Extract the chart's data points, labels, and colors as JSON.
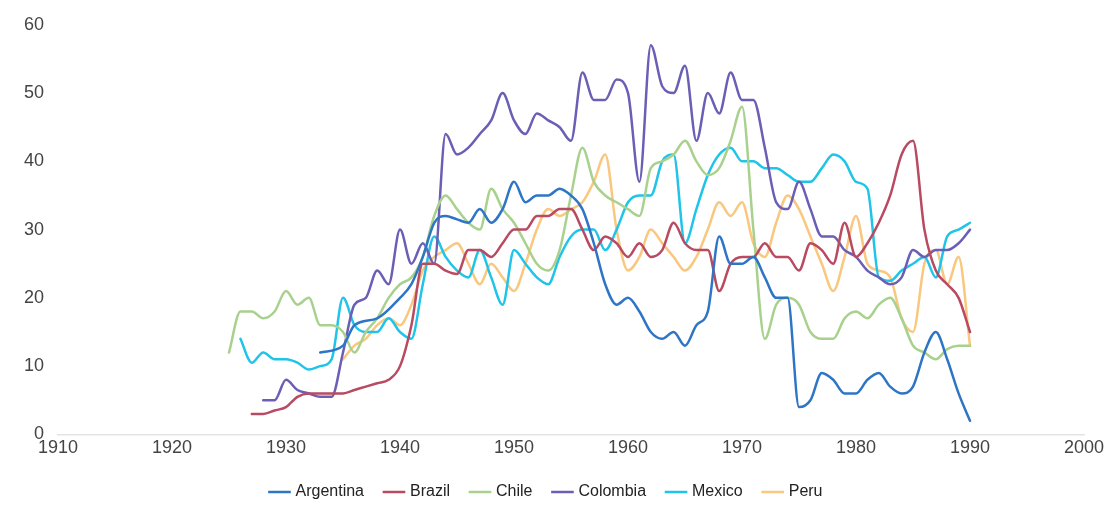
{
  "chart_data": {
    "type": "line",
    "xlim": [
      1910,
      2000
    ],
    "xticks": [
      1910,
      1920,
      1930,
      1940,
      1950,
      1960,
      1970,
      1980,
      1990,
      2000
    ],
    "ylim": [
      0,
      60
    ],
    "yticks": [
      0,
      10,
      20,
      30,
      40,
      50,
      60
    ],
    "grid": false,
    "legend": "bottom",
    "marker": "none",
    "line_style": "solid",
    "series": [
      {
        "name": "Argentina",
        "color": "#2e75c6",
        "x": [
          1933,
          1935,
          1936,
          1938,
          1940,
          1941,
          1942,
          1943,
          1944,
          1945,
          1946,
          1947,
          1948,
          1949,
          1950,
          1951,
          1952,
          1953,
          1954,
          1955,
          1956,
          1957,
          1958,
          1959,
          1960,
          1961,
          1962,
          1963,
          1964,
          1965,
          1966,
          1967,
          1968,
          1969,
          1970,
          1971,
          1972,
          1973,
          1974,
          1975,
          1976,
          1977,
          1978,
          1979,
          1980,
          1981,
          1982,
          1983,
          1984,
          1985,
          1986,
          1987,
          1988,
          1989,
          1990
        ],
        "values": [
          12,
          13,
          16,
          17,
          20,
          22,
          26,
          31,
          32,
          31.5,
          31,
          33,
          31,
          33,
          37,
          34,
          35,
          35,
          36,
          35,
          33,
          28,
          22,
          19,
          20,
          18,
          15,
          14,
          15,
          13,
          16,
          18,
          29,
          25,
          25,
          26,
          23,
          20,
          20,
          4,
          5,
          9,
          8,
          6,
          6,
          8,
          9,
          7,
          6,
          7,
          12,
          15,
          11,
          6,
          2
        ]
      },
      {
        "name": "Brazil",
        "color": "#b84a62",
        "x": [
          1927,
          1928,
          1929,
          1930,
          1931,
          1932,
          1933,
          1934,
          1935,
          1936,
          1937,
          1938,
          1939,
          1940,
          1941,
          1942,
          1943,
          1944,
          1945,
          1946,
          1947,
          1948,
          1949,
          1950,
          1951,
          1952,
          1953,
          1954,
          1955,
          1956,
          1957,
          1958,
          1959,
          1960,
          1961,
          1962,
          1963,
          1964,
          1965,
          1966,
          1967,
          1968,
          1969,
          1970,
          1971,
          1972,
          1973,
          1974,
          1975,
          1976,
          1977,
          1978,
          1979,
          1980,
          1981,
          1982,
          1983,
          1984,
          1985,
          1986,
          1987,
          1988,
          1989,
          1990
        ],
        "values": [
          3,
          3,
          3.5,
          4,
          5.5,
          6,
          6,
          6,
          6,
          6.5,
          7,
          7.5,
          8,
          10,
          16,
          25,
          25,
          24,
          23.5,
          27,
          27,
          26,
          28,
          30,
          30,
          32,
          32,
          33,
          33,
          30,
          27,
          29,
          28,
          26,
          28,
          26,
          27,
          31,
          28,
          27,
          27,
          21,
          25,
          26,
          26,
          28,
          26,
          26,
          24,
          28,
          27,
          25,
          31,
          26,
          28,
          31,
          35,
          41,
          43,
          30,
          24,
          22,
          20,
          15
        ]
      },
      {
        "name": "Chile",
        "color": "#a9d18e",
        "x": [
          1925,
          1926,
          1927,
          1928,
          1929,
          1930,
          1931,
          1932,
          1933,
          1934,
          1935,
          1936,
          1937,
          1938,
          1939,
          1940,
          1941,
          1942,
          1943,
          1944,
          1945,
          1946,
          1947,
          1948,
          1949,
          1950,
          1951,
          1952,
          1953,
          1954,
          1955,
          1956,
          1957,
          1958,
          1959,
          1960,
          1961,
          1962,
          1963,
          1964,
          1965,
          1966,
          1967,
          1968,
          1969,
          1970,
          1971,
          1972,
          1973,
          1974,
          1975,
          1976,
          1977,
          1978,
          1979,
          1980,
          1981,
          1982,
          1983,
          1984,
          1985,
          1986,
          1987,
          1988,
          1989,
          1990
        ],
        "values": [
          12,
          18,
          18,
          17,
          18,
          21,
          19,
          20,
          16,
          16,
          15,
          12,
          15,
          17,
          20,
          22,
          23,
          26,
          32,
          35,
          33,
          31,
          30,
          36,
          33,
          31,
          28,
          25,
          24,
          27,
          35,
          42,
          37,
          35,
          34,
          33,
          32,
          39,
          40,
          41,
          43,
          40,
          38,
          39,
          43,
          48,
          30,
          14,
          19,
          20,
          19,
          15,
          14,
          14,
          17,
          18,
          17,
          19,
          20,
          17,
          13,
          12,
          11,
          12.5,
          13,
          13
        ]
      },
      {
        "name": "Colombia",
        "color": "#6a5fb5",
        "x": [
          1928,
          1929,
          1930,
          1931,
          1932,
          1933,
          1934,
          1935,
          1936,
          1937,
          1938,
          1939,
          1940,
          1941,
          1942,
          1943,
          1944,
          1945,
          1946,
          1947,
          1948,
          1949,
          1950,
          1951,
          1952,
          1953,
          1954,
          1955,
          1956,
          1957,
          1958,
          1959,
          1960,
          1961,
          1962,
          1963,
          1964,
          1965,
          1966,
          1967,
          1968,
          1969,
          1970,
          1971,
          1972,
          1973,
          1974,
          1975,
          1976,
          1977,
          1978,
          1979,
          1980,
          1981,
          1982,
          1983,
          1984,
          1985,
          1986,
          1987,
          1988,
          1989,
          1990
        ],
        "values": [
          5,
          5,
          8,
          6.5,
          6,
          5.5,
          5.5,
          12,
          19,
          20,
          24,
          22,
          30,
          25,
          28,
          25,
          44,
          41,
          42,
          44,
          46,
          50,
          46,
          44,
          47,
          46,
          45,
          43,
          53,
          49,
          49,
          52,
          50,
          37,
          57,
          51,
          50,
          54,
          43,
          50,
          47,
          53,
          49,
          49,
          42,
          34,
          33,
          37,
          33,
          29,
          29,
          27,
          26,
          24,
          23,
          22,
          23,
          27,
          26,
          27,
          27,
          28,
          30
        ]
      },
      {
        "name": "Mexico",
        "color": "#1fc4e8",
        "x": [
          1926,
          1927,
          1928,
          1929,
          1930,
          1931,
          1932,
          1933,
          1934,
          1935,
          1936,
          1937,
          1938,
          1939,
          1940,
          1941,
          1942,
          1943,
          1944,
          1945,
          1946,
          1947,
          1948,
          1949,
          1950,
          1951,
          1952,
          1953,
          1954,
          1955,
          1956,
          1957,
          1958,
          1959,
          1960,
          1961,
          1962,
          1963,
          1964,
          1965,
          1966,
          1967,
          1968,
          1969,
          1970,
          1971,
          1972,
          1973,
          1974,
          1975,
          1976,
          1977,
          1978,
          1979,
          1980,
          1981,
          1982,
          1983,
          1984,
          1985,
          1986,
          1987,
          1988,
          1989,
          1990
        ],
        "values": [
          14,
          10.5,
          12,
          11,
          11,
          10.5,
          9.5,
          10,
          11,
          20,
          16,
          15,
          15,
          17,
          15,
          14,
          22,
          29,
          26,
          24,
          23,
          27,
          23,
          19,
          27,
          25,
          23,
          22,
          26,
          29,
          30,
          30,
          27,
          30,
          34,
          35,
          35,
          40,
          41,
          28,
          33,
          38,
          41,
          42,
          40,
          40,
          39,
          39,
          38,
          37,
          37,
          39,
          41,
          40,
          37,
          36,
          23,
          22.5,
          24,
          25,
          26,
          23,
          29,
          30,
          31
        ]
      },
      {
        "name": "Peru",
        "color": "#f9c77e",
        "x": [
          1935,
          1936,
          1937,
          1938,
          1939,
          1940,
          1941,
          1942,
          1943,
          1944,
          1945,
          1946,
          1947,
          1948,
          1949,
          1950,
          1951,
          1952,
          1953,
          1954,
          1955,
          1956,
          1957,
          1958,
          1959,
          1960,
          1961,
          1962,
          1963,
          1964,
          1965,
          1966,
          1967,
          1968,
          1969,
          1970,
          1971,
          1972,
          1973,
          1974,
          1975,
          1976,
          1977,
          1978,
          1979,
          1980,
          1981,
          1982,
          1983,
          1984,
          1985,
          1986,
          1987,
          1988,
          1989,
          1990
        ],
        "values": [
          11,
          13,
          14,
          16,
          17,
          16,
          19,
          24,
          26,
          27,
          28,
          25,
          22,
          25,
          23,
          21,
          25,
          30,
          33,
          32,
          33,
          34,
          37,
          41,
          30,
          24,
          26,
          30,
          28,
          26,
          24,
          26,
          30,
          34,
          32,
          34,
          28,
          26,
          31,
          35,
          33,
          29,
          25,
          21,
          26,
          32,
          25,
          24,
          23,
          17,
          15,
          25,
          27,
          22,
          26,
          13
        ]
      }
    ]
  }
}
